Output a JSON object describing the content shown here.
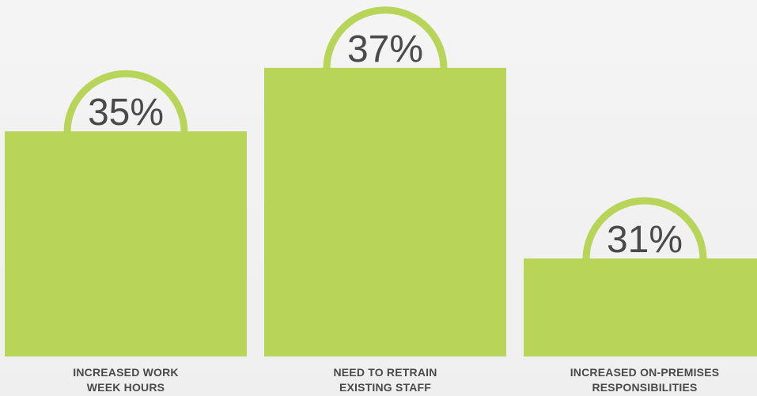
{
  "chart_data": {
    "type": "bar",
    "categories": [
      [
        "INCREASED WORK",
        "WEEK HOURS"
      ],
      [
        "NEED TO RETRAIN",
        "EXISTING STAFF"
      ],
      [
        "INCREASED ON-PREMISES",
        "RESPONSIBILITIES"
      ]
    ],
    "values": [
      35,
      37,
      31
    ],
    "value_labels": [
      "35%",
      "37%",
      "31%"
    ],
    "unit": "%",
    "grid": false,
    "legend": "none"
  },
  "colors": {
    "bar": "#b8d55a",
    "text": "#4a4a4a",
    "background": "#f2f2f2"
  }
}
